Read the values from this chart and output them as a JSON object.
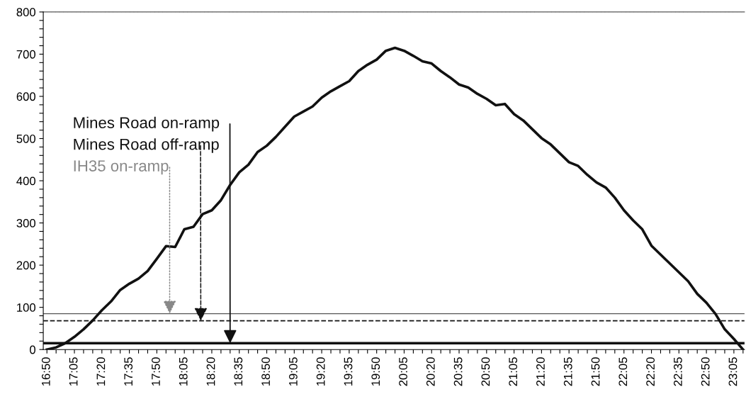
{
  "chart_data": {
    "type": "line",
    "x": [
      16.8333,
      16.9167,
      17.0,
      17.0833,
      17.1667,
      17.25,
      17.3333,
      17.4167,
      17.5,
      17.5833,
      17.6667,
      17.75,
      17.8333,
      17.9167,
      18.0,
      18.0833,
      18.1667,
      18.25,
      18.3333,
      18.4167,
      18.5,
      18.5833,
      18.6667,
      18.75,
      18.8333,
      18.9167,
      19.0,
      19.0833,
      19.1667,
      19.25,
      19.3333,
      19.4167,
      19.5,
      19.5833,
      19.6667,
      19.75,
      19.8333,
      19.9167,
      20.0,
      20.0833,
      20.1667,
      20.25,
      20.3333,
      20.4167,
      20.5,
      20.5833,
      20.6667,
      20.75,
      20.8333,
      20.9167,
      21.0,
      21.0833,
      21.1667,
      21.25,
      21.3333,
      21.4167,
      21.5,
      21.5833,
      21.6667,
      21.75,
      21.8333,
      21.9167,
      22.0,
      22.0833,
      22.1667,
      22.25,
      22.3333,
      22.4167,
      22.5,
      22.5833,
      22.6667,
      22.75,
      22.8333,
      22.9167,
      23.0,
      23.0833,
      23.1667
    ],
    "series": [
      {
        "color": "#111111",
        "values": [
          0,
          5,
          15,
          30,
          48,
          69,
          93,
          114,
          141,
          156,
          168,
          186,
          215,
          245,
          243,
          285,
          291,
          321,
          330,
          354,
          390,
          420,
          438,
          468,
          483,
          504,
          528,
          552,
          564,
          576,
          597,
          612,
          624,
          636,
          660,
          675,
          687,
          708,
          715,
          708,
          696,
          683,
          678,
          660,
          645,
          628,
          621,
          606,
          594,
          579,
          582,
          558,
          543,
          522,
          501,
          486,
          465,
          444,
          435,
          414,
          396,
          384,
          360,
          330,
          306,
          285,
          246,
          225,
          204,
          183,
          162,
          132,
          111,
          84,
          48,
          25,
          0
        ]
      }
    ],
    "xlim": [
      16.8,
      23.18
    ],
    "ylim": [
      0,
      800
    ],
    "xticks": [
      {
        "value": 16.8333,
        "label": "16:50"
      },
      {
        "value": 16.9167,
        "label": null
      },
      {
        "value": 17.0,
        "label": null
      },
      {
        "value": 17.0833,
        "label": "17:05"
      },
      {
        "value": 17.1667,
        "label": null
      },
      {
        "value": 17.25,
        "label": null
      },
      {
        "value": 17.3333,
        "label": "17:20"
      },
      {
        "value": 17.4167,
        "label": null
      },
      {
        "value": 17.5,
        "label": null
      },
      {
        "value": 17.5833,
        "label": "17:35"
      },
      {
        "value": 17.6667,
        "label": null
      },
      {
        "value": 17.75,
        "label": null
      },
      {
        "value": 17.8333,
        "label": "17:50"
      },
      {
        "value": 17.9167,
        "label": null
      },
      {
        "value": 18.0,
        "label": null
      },
      {
        "value": 18.0833,
        "label": "18:05"
      },
      {
        "value": 18.1667,
        "label": null
      },
      {
        "value": 18.25,
        "label": null
      },
      {
        "value": 18.3333,
        "label": "18:20"
      },
      {
        "value": 18.4167,
        "label": null
      },
      {
        "value": 18.5,
        "label": null
      },
      {
        "value": 18.5833,
        "label": "18:35"
      },
      {
        "value": 18.6667,
        "label": null
      },
      {
        "value": 18.75,
        "label": null
      },
      {
        "value": 18.8333,
        "label": "18:50"
      },
      {
        "value": 18.9167,
        "label": null
      },
      {
        "value": 19.0,
        "label": null
      },
      {
        "value": 19.0833,
        "label": "19:05"
      },
      {
        "value": 19.1667,
        "label": null
      },
      {
        "value": 19.25,
        "label": null
      },
      {
        "value": 19.3333,
        "label": "19:20"
      },
      {
        "value": 19.4167,
        "label": null
      },
      {
        "value": 19.5,
        "label": null
      },
      {
        "value": 19.5833,
        "label": "19:35"
      },
      {
        "value": 19.6667,
        "label": null
      },
      {
        "value": 19.75,
        "label": null
      },
      {
        "value": 19.8333,
        "label": "19:50"
      },
      {
        "value": 19.9167,
        "label": null
      },
      {
        "value": 20.0,
        "label": null
      },
      {
        "value": 20.0833,
        "label": "20:05"
      },
      {
        "value": 20.1667,
        "label": null
      },
      {
        "value": 20.25,
        "label": null
      },
      {
        "value": 20.3333,
        "label": "20:20"
      },
      {
        "value": 20.4167,
        "label": null
      },
      {
        "value": 20.5,
        "label": null
      },
      {
        "value": 20.5833,
        "label": "20:35"
      },
      {
        "value": 20.6667,
        "label": null
      },
      {
        "value": 20.75,
        "label": null
      },
      {
        "value": 20.8333,
        "label": "20:50"
      },
      {
        "value": 20.9167,
        "label": null
      },
      {
        "value": 21.0,
        "label": null
      },
      {
        "value": 21.0833,
        "label": "21:05"
      },
      {
        "value": 21.1667,
        "label": null
      },
      {
        "value": 21.25,
        "label": null
      },
      {
        "value": 21.3333,
        "label": "21:20"
      },
      {
        "value": 21.4167,
        "label": null
      },
      {
        "value": 21.5,
        "label": null
      },
      {
        "value": 21.5833,
        "label": "21:35"
      },
      {
        "value": 21.6667,
        "label": null
      },
      {
        "value": 21.75,
        "label": null
      },
      {
        "value": 21.8333,
        "label": "21:50"
      },
      {
        "value": 21.9167,
        "label": null
      },
      {
        "value": 22.0,
        "label": null
      },
      {
        "value": 22.0833,
        "label": "22:05"
      },
      {
        "value": 22.1667,
        "label": null
      },
      {
        "value": 22.25,
        "label": null
      },
      {
        "value": 22.3333,
        "label": "22:20"
      },
      {
        "value": 22.4167,
        "label": null
      },
      {
        "value": 22.5,
        "label": null
      },
      {
        "value": 22.5833,
        "label": "22:35"
      },
      {
        "value": 22.6667,
        "label": null
      },
      {
        "value": 22.75,
        "label": null
      },
      {
        "value": 22.8333,
        "label": "22:50"
      },
      {
        "value": 22.9167,
        "label": null
      },
      {
        "value": 23.0,
        "label": null
      },
      {
        "value": 23.0833,
        "label": "23:05"
      },
      {
        "value": 23.1667,
        "label": null
      }
    ],
    "yticks": [
      0,
      {
        "value": 20,
        "label": null
      },
      {
        "value": 40,
        "label": null
      },
      {
        "value": 60,
        "label": null
      },
      {
        "value": 80,
        "label": null
      },
      100,
      {
        "value": 120,
        "label": null
      },
      {
        "value": 140,
        "label": null
      },
      {
        "value": 160,
        "label": null
      },
      {
        "value": 180,
        "label": null
      },
      200,
      {
        "value": 220,
        "label": null
      },
      {
        "value": 240,
        "label": null
      },
      {
        "value": 260,
        "label": null
      },
      {
        "value": 280,
        "label": null
      },
      300,
      {
        "value": 320,
        "label": null
      },
      {
        "value": 340,
        "label": null
      },
      {
        "value": 360,
        "label": null
      },
      {
        "value": 380,
        "label": null
      },
      400,
      {
        "value": 420,
        "label": null
      },
      {
        "value": 440,
        "label": null
      },
      {
        "value": 460,
        "label": null
      },
      {
        "value": 480,
        "label": null
      },
      500,
      {
        "value": 520,
        "label": null
      },
      {
        "value": 540,
        "label": null
      },
      {
        "value": 560,
        "label": null
      },
      {
        "value": 580,
        "label": null
      },
      600,
      {
        "value": 620,
        "label": null
      },
      {
        "value": 640,
        "label": null
      },
      {
        "value": 660,
        "label": null
      },
      {
        "value": 680,
        "label": null
      },
      700,
      {
        "value": 720,
        "label": null
      },
      {
        "value": 740,
        "label": null
      },
      {
        "value": 760,
        "label": null
      },
      {
        "value": 780,
        "label": null
      },
      800
    ],
    "ref_lines": [
      {
        "axis": "y",
        "value": 15,
        "color": "#111111",
        "line_style": "solid"
      },
      {
        "axis": "y",
        "value": 68,
        "color": "#111111",
        "line_style": "dashed"
      },
      {
        "axis": "y",
        "value": 85,
        "color": "#555555",
        "line_style": "solid"
      }
    ],
    "annotations": [
      {
        "text": "Mines Road on-ramp",
        "x": 18.5,
        "y": 15
      },
      {
        "text": "Mines Road off-ramp",
        "x": 18.2333,
        "y": 68
      },
      {
        "text": "IH35 on-ramp",
        "x": 17.95,
        "y": 85
      }
    ],
    "grid": false,
    "marker": "none",
    "line_style": "solid"
  }
}
